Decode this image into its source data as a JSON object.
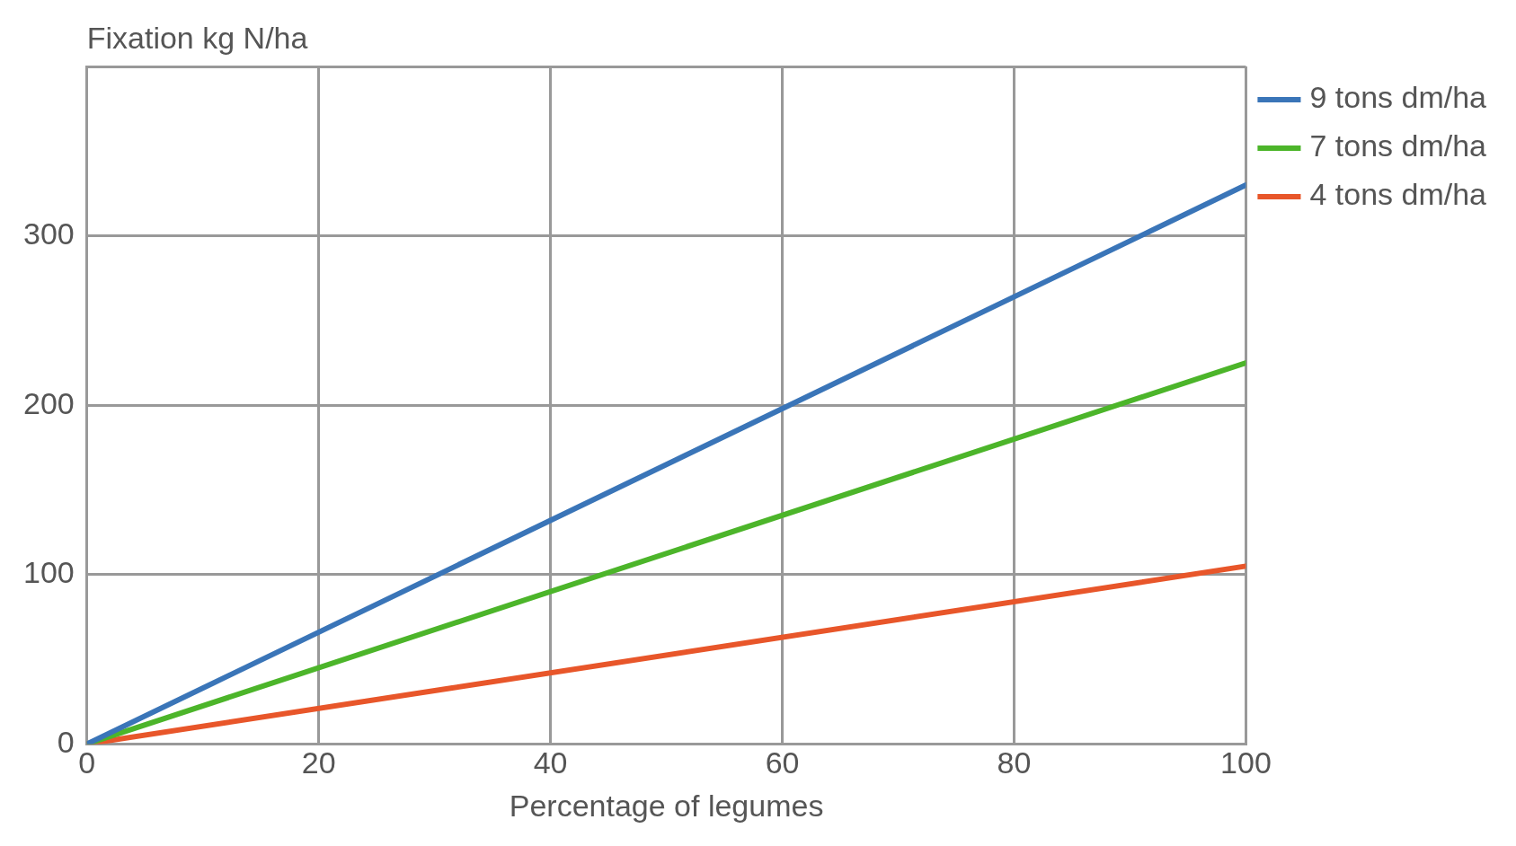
{
  "chart_data": {
    "type": "line",
    "xlabel": "Percentage of legumes",
    "ylabel": "Fixation kg N/ha",
    "x": [
      0,
      100
    ],
    "series": [
      {
        "name": "9 tons dm/ha",
        "color": "#3a75b8",
        "values": [
          0,
          330
        ]
      },
      {
        "name": "7 tons dm/ha",
        "color": "#4cb52a",
        "values": [
          0,
          225
        ]
      },
      {
        "name": "4 tons dm/ha",
        "color": "#e8562a",
        "values": [
          0,
          105
        ]
      }
    ],
    "xlim": [
      0,
      100
    ],
    "xticks": [
      0,
      20,
      40,
      60,
      80,
      100
    ],
    "ylim": [
      0,
      400
    ],
    "yticks": [
      0,
      100,
      200,
      300,
      {
        "value": 400,
        "label": null
      }
    ],
    "grid": true,
    "legend": "top right",
    "marker": "none",
    "line_style": "solid"
  }
}
